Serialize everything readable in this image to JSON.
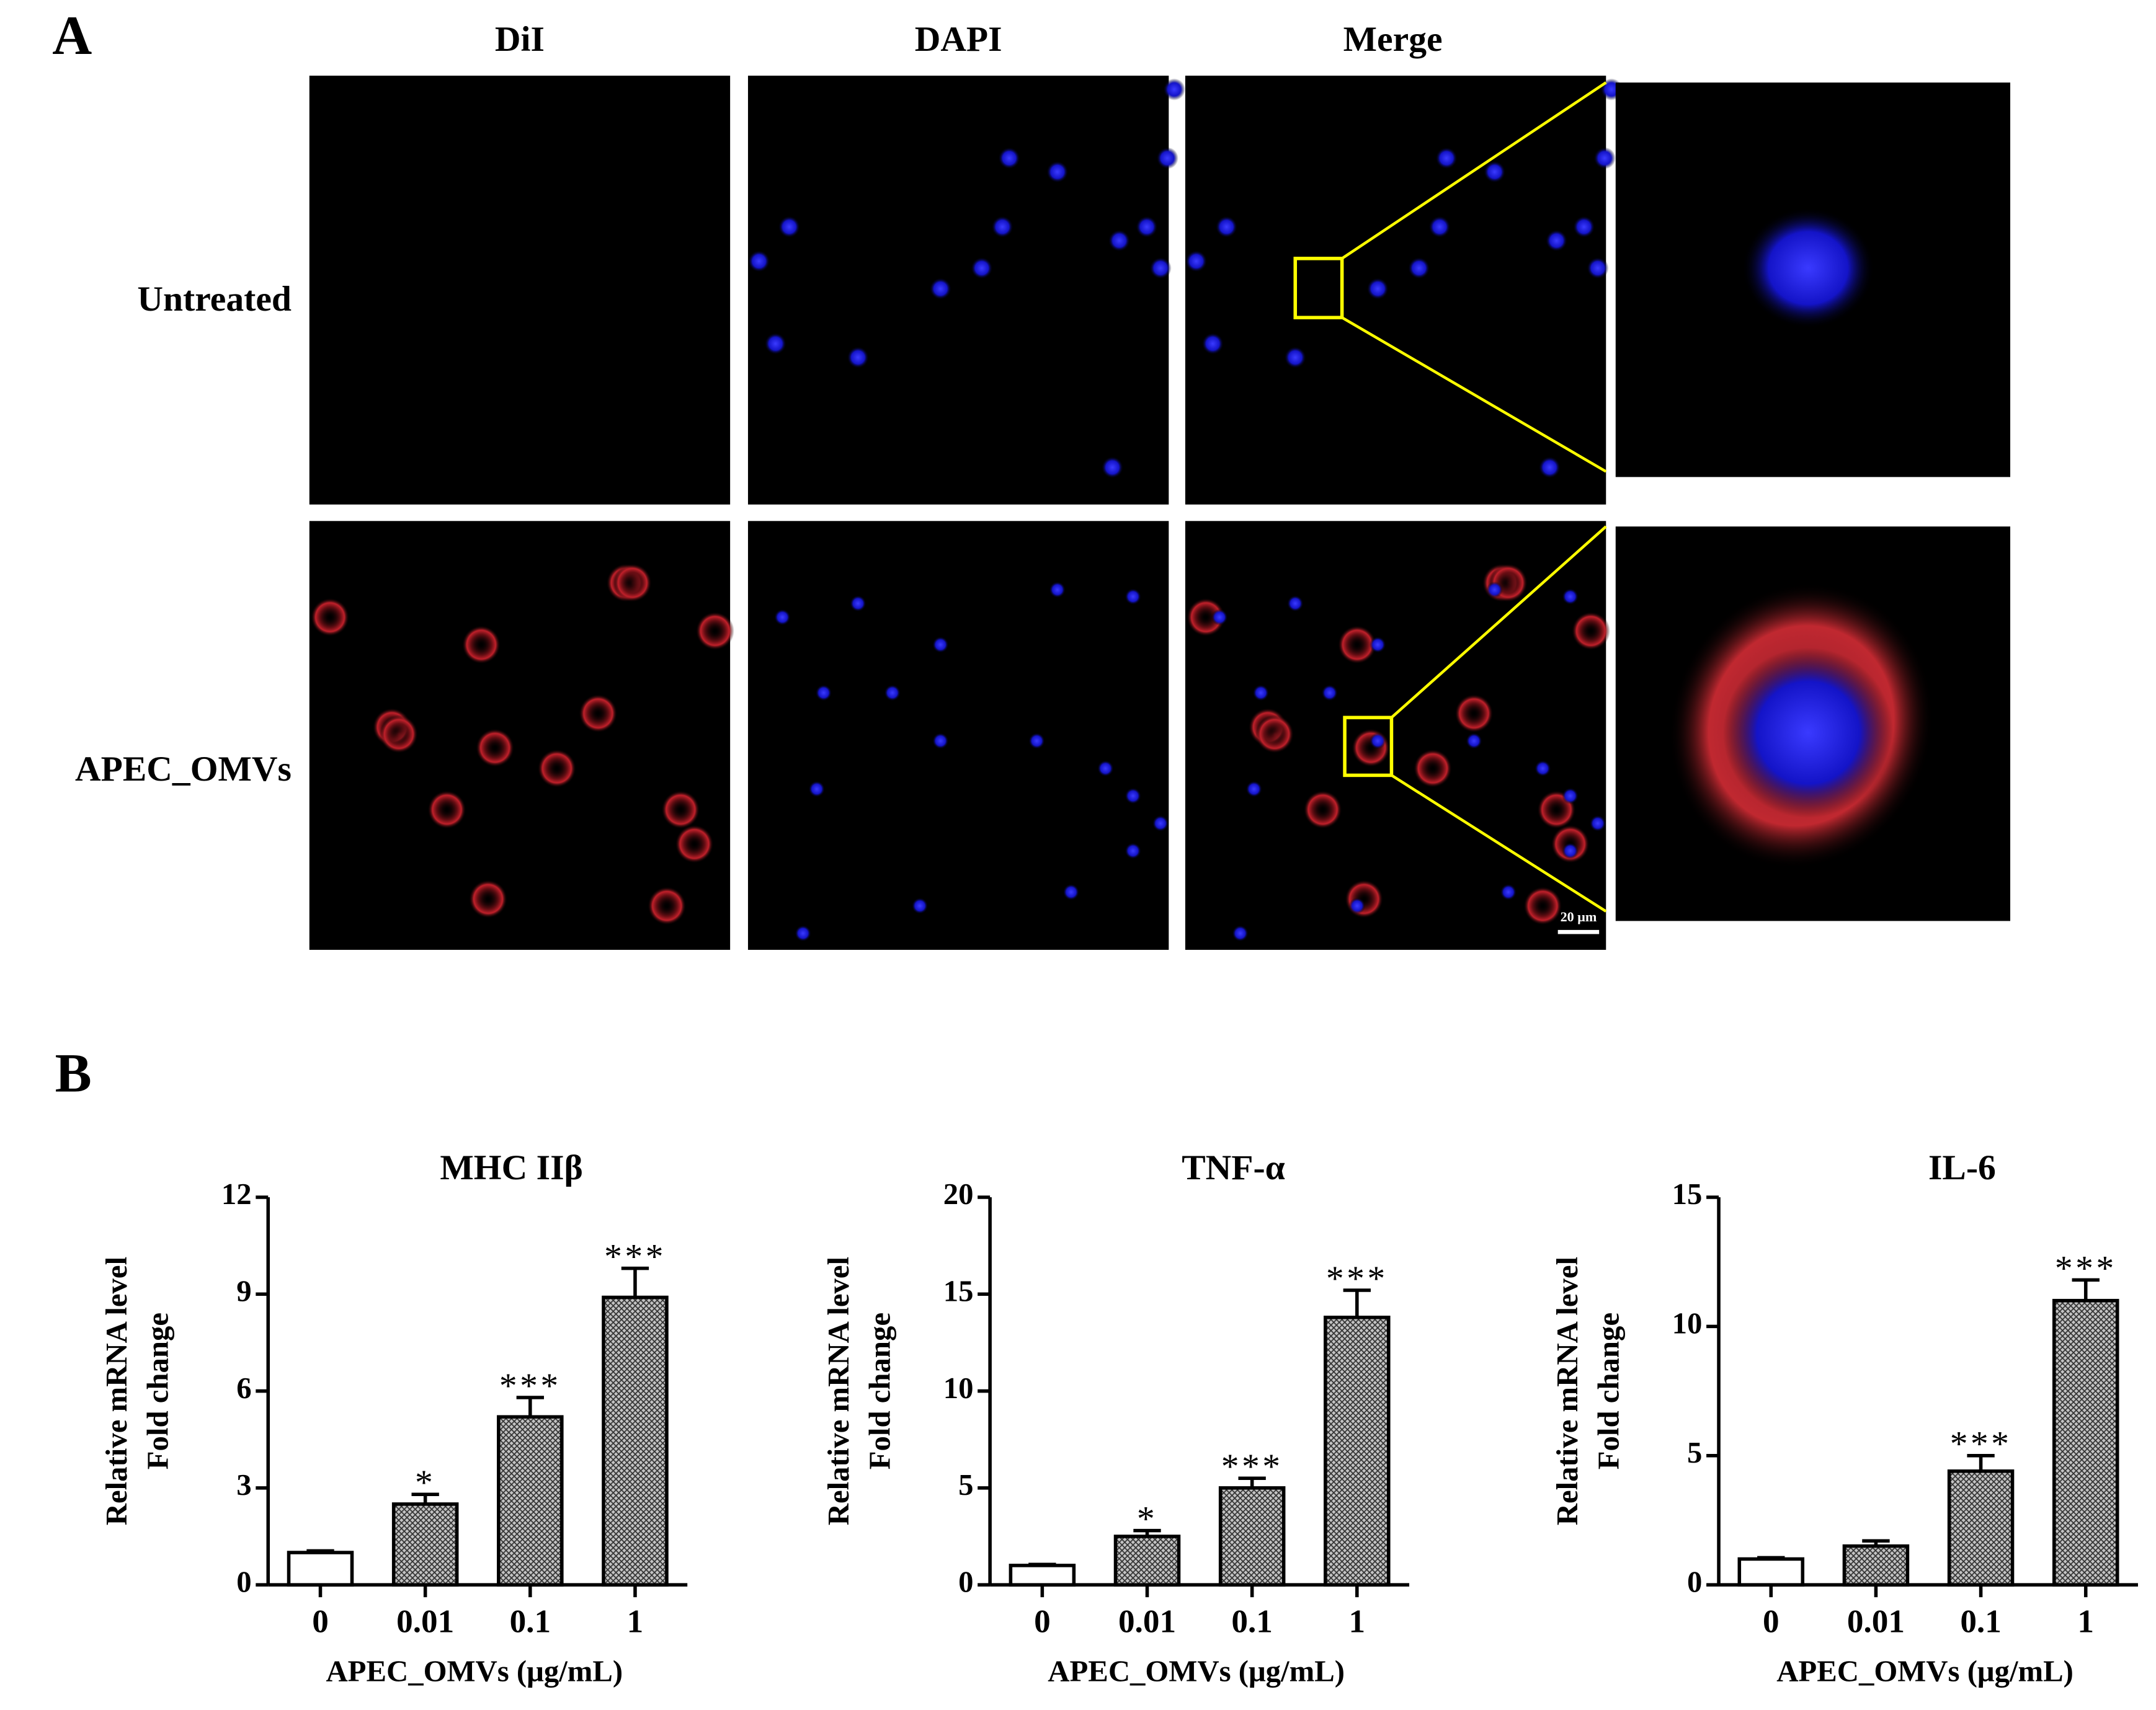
{
  "figure": {
    "panel_a": {
      "label": "A",
      "columns": [
        "DiI",
        "DAPI",
        "Merge"
      ],
      "rows": [
        "Untreated",
        "APEC_OMVs"
      ],
      "scale_bar": "20 μm"
    },
    "panel_b": {
      "label": "B"
    }
  },
  "chart_data": [
    {
      "type": "bar",
      "title": "MHC IIβ",
      "categories": [
        "0",
        "0.01",
        "0.1",
        "1"
      ],
      "x_label": "APEC_OMVs (μg/mL)",
      "y_label": [
        "Relative mRNA level",
        "Fold change"
      ],
      "values": [
        1.0,
        2.5,
        5.2,
        8.9
      ],
      "errors": [
        0.05,
        0.3,
        0.6,
        0.9
      ],
      "annotations": [
        null,
        "*",
        "***",
        "***"
      ],
      "colors": [
        "#ffffff",
        "#c4c4c4",
        "#c4c4c4",
        "#c4c4c4"
      ],
      "ylim": [
        0,
        12
      ],
      "yticks": [
        0,
        3,
        6,
        9,
        12
      ]
    },
    {
      "type": "bar",
      "title": "TNF-α",
      "categories": [
        "0",
        "0.01",
        "0.1",
        "1"
      ],
      "x_label": "APEC_OMVs (μg/mL)",
      "y_label": [
        "Relative mRNA level",
        "Fold change"
      ],
      "values": [
        1.0,
        2.5,
        5.0,
        13.8
      ],
      "errors": [
        0.05,
        0.3,
        0.5,
        1.4
      ],
      "annotations": [
        null,
        "*",
        "***",
        "***"
      ],
      "colors": [
        "#ffffff",
        "#c4c4c4",
        "#c4c4c4",
        "#c4c4c4"
      ],
      "ylim": [
        0,
        20
      ],
      "yticks": [
        0,
        5,
        10,
        15,
        20
      ]
    },
    {
      "type": "bar",
      "title": "IL-6",
      "categories": [
        "0",
        "0.01",
        "0.1",
        "1"
      ],
      "x_label": "APEC_OMVs (μg/mL)",
      "y_label": [
        "Relative mRNA level",
        "Fold change"
      ],
      "values": [
        1.0,
        1.5,
        4.4,
        11.0
      ],
      "errors": [
        0.05,
        0.2,
        0.6,
        0.8
      ],
      "annotations": [
        null,
        null,
        "***",
        "***"
      ],
      "colors": [
        "#ffffff",
        "#c4c4c4",
        "#c4c4c4",
        "#c4c4c4"
      ],
      "ylim": [
        0,
        15
      ],
      "yticks": [
        0,
        5,
        10,
        15
      ]
    }
  ]
}
